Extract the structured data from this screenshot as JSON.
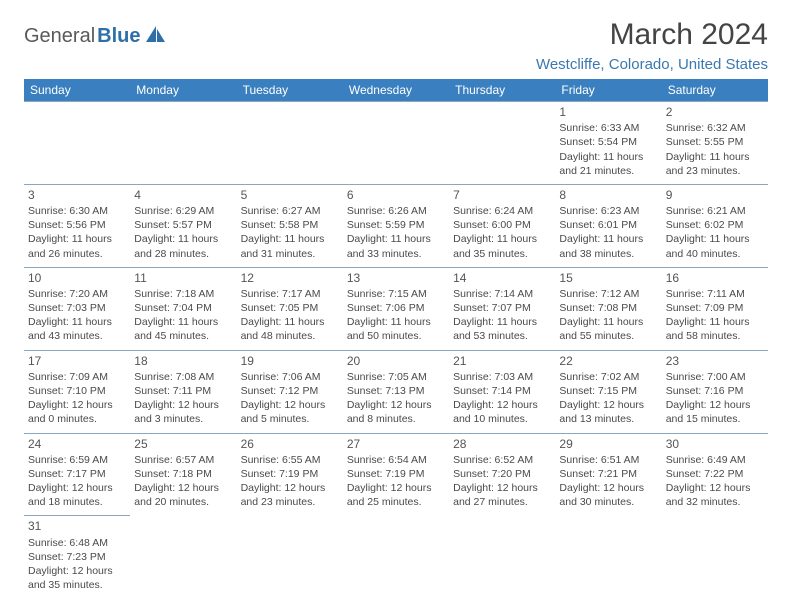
{
  "logo": {
    "text1": "General",
    "text2": "Blue"
  },
  "title": "March 2024",
  "location": "Westcliffe, Colorado, United States",
  "colors": {
    "header_bg": "#3a7fbf",
    "header_fg": "#ffffff",
    "border": "#8ca7bd",
    "logo_gray": "#5a5a5a",
    "logo_blue": "#2f6fa8",
    "location_color": "#3a78b0",
    "text_color": "#4a4a4a"
  },
  "weekdays": [
    "Sunday",
    "Monday",
    "Tuesday",
    "Wednesday",
    "Thursday",
    "Friday",
    "Saturday"
  ],
  "weeks": [
    [
      null,
      null,
      null,
      null,
      null,
      {
        "n": "1",
        "sr": "Sunrise: 6:33 AM",
        "ss": "Sunset: 5:54 PM",
        "dl": "Daylight: 11 hours and 21 minutes."
      },
      {
        "n": "2",
        "sr": "Sunrise: 6:32 AM",
        "ss": "Sunset: 5:55 PM",
        "dl": "Daylight: 11 hours and 23 minutes."
      }
    ],
    [
      {
        "n": "3",
        "sr": "Sunrise: 6:30 AM",
        "ss": "Sunset: 5:56 PM",
        "dl": "Daylight: 11 hours and 26 minutes."
      },
      {
        "n": "4",
        "sr": "Sunrise: 6:29 AM",
        "ss": "Sunset: 5:57 PM",
        "dl": "Daylight: 11 hours and 28 minutes."
      },
      {
        "n": "5",
        "sr": "Sunrise: 6:27 AM",
        "ss": "Sunset: 5:58 PM",
        "dl": "Daylight: 11 hours and 31 minutes."
      },
      {
        "n": "6",
        "sr": "Sunrise: 6:26 AM",
        "ss": "Sunset: 5:59 PM",
        "dl": "Daylight: 11 hours and 33 minutes."
      },
      {
        "n": "7",
        "sr": "Sunrise: 6:24 AM",
        "ss": "Sunset: 6:00 PM",
        "dl": "Daylight: 11 hours and 35 minutes."
      },
      {
        "n": "8",
        "sr": "Sunrise: 6:23 AM",
        "ss": "Sunset: 6:01 PM",
        "dl": "Daylight: 11 hours and 38 minutes."
      },
      {
        "n": "9",
        "sr": "Sunrise: 6:21 AM",
        "ss": "Sunset: 6:02 PM",
        "dl": "Daylight: 11 hours and 40 minutes."
      }
    ],
    [
      {
        "n": "10",
        "sr": "Sunrise: 7:20 AM",
        "ss": "Sunset: 7:03 PM",
        "dl": "Daylight: 11 hours and 43 minutes."
      },
      {
        "n": "11",
        "sr": "Sunrise: 7:18 AM",
        "ss": "Sunset: 7:04 PM",
        "dl": "Daylight: 11 hours and 45 minutes."
      },
      {
        "n": "12",
        "sr": "Sunrise: 7:17 AM",
        "ss": "Sunset: 7:05 PM",
        "dl": "Daylight: 11 hours and 48 minutes."
      },
      {
        "n": "13",
        "sr": "Sunrise: 7:15 AM",
        "ss": "Sunset: 7:06 PM",
        "dl": "Daylight: 11 hours and 50 minutes."
      },
      {
        "n": "14",
        "sr": "Sunrise: 7:14 AM",
        "ss": "Sunset: 7:07 PM",
        "dl": "Daylight: 11 hours and 53 minutes."
      },
      {
        "n": "15",
        "sr": "Sunrise: 7:12 AM",
        "ss": "Sunset: 7:08 PM",
        "dl": "Daylight: 11 hours and 55 minutes."
      },
      {
        "n": "16",
        "sr": "Sunrise: 7:11 AM",
        "ss": "Sunset: 7:09 PM",
        "dl": "Daylight: 11 hours and 58 minutes."
      }
    ],
    [
      {
        "n": "17",
        "sr": "Sunrise: 7:09 AM",
        "ss": "Sunset: 7:10 PM",
        "dl": "Daylight: 12 hours and 0 minutes."
      },
      {
        "n": "18",
        "sr": "Sunrise: 7:08 AM",
        "ss": "Sunset: 7:11 PM",
        "dl": "Daylight: 12 hours and 3 minutes."
      },
      {
        "n": "19",
        "sr": "Sunrise: 7:06 AM",
        "ss": "Sunset: 7:12 PM",
        "dl": "Daylight: 12 hours and 5 minutes."
      },
      {
        "n": "20",
        "sr": "Sunrise: 7:05 AM",
        "ss": "Sunset: 7:13 PM",
        "dl": "Daylight: 12 hours and 8 minutes."
      },
      {
        "n": "21",
        "sr": "Sunrise: 7:03 AM",
        "ss": "Sunset: 7:14 PM",
        "dl": "Daylight: 12 hours and 10 minutes."
      },
      {
        "n": "22",
        "sr": "Sunrise: 7:02 AM",
        "ss": "Sunset: 7:15 PM",
        "dl": "Daylight: 12 hours and 13 minutes."
      },
      {
        "n": "23",
        "sr": "Sunrise: 7:00 AM",
        "ss": "Sunset: 7:16 PM",
        "dl": "Daylight: 12 hours and 15 minutes."
      }
    ],
    [
      {
        "n": "24",
        "sr": "Sunrise: 6:59 AM",
        "ss": "Sunset: 7:17 PM",
        "dl": "Daylight: 12 hours and 18 minutes."
      },
      {
        "n": "25",
        "sr": "Sunrise: 6:57 AM",
        "ss": "Sunset: 7:18 PM",
        "dl": "Daylight: 12 hours and 20 minutes."
      },
      {
        "n": "26",
        "sr": "Sunrise: 6:55 AM",
        "ss": "Sunset: 7:19 PM",
        "dl": "Daylight: 12 hours and 23 minutes."
      },
      {
        "n": "27",
        "sr": "Sunrise: 6:54 AM",
        "ss": "Sunset: 7:19 PM",
        "dl": "Daylight: 12 hours and 25 minutes."
      },
      {
        "n": "28",
        "sr": "Sunrise: 6:52 AM",
        "ss": "Sunset: 7:20 PM",
        "dl": "Daylight: 12 hours and 27 minutes."
      },
      {
        "n": "29",
        "sr": "Sunrise: 6:51 AM",
        "ss": "Sunset: 7:21 PM",
        "dl": "Daylight: 12 hours and 30 minutes."
      },
      {
        "n": "30",
        "sr": "Sunrise: 6:49 AM",
        "ss": "Sunset: 7:22 PM",
        "dl": "Daylight: 12 hours and 32 minutes."
      }
    ],
    [
      {
        "n": "31",
        "sr": "Sunrise: 6:48 AM",
        "ss": "Sunset: 7:23 PM",
        "dl": "Daylight: 12 hours and 35 minutes."
      },
      null,
      null,
      null,
      null,
      null,
      null
    ]
  ]
}
